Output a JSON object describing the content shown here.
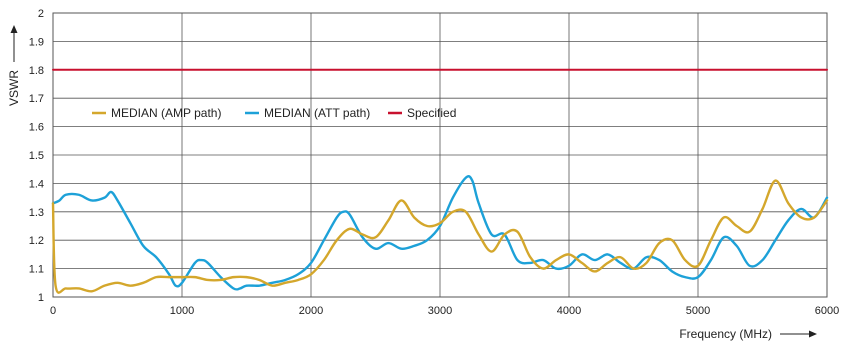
{
  "chart_data": {
    "type": "line",
    "xlabel": "Frequency (MHz)",
    "ylabel": "VSWR",
    "xlim": [
      0,
      6000
    ],
    "ylim": [
      1,
      2
    ],
    "x_ticks": [
      0,
      1000,
      2000,
      3000,
      4000,
      5000,
      6000
    ],
    "y_ticks": [
      1,
      1.1,
      1.2,
      1.3,
      1.4,
      1.5,
      1.6,
      1.7,
      1.8,
      1.9,
      2
    ],
    "grid": true,
    "legend_position": "upper-left",
    "series": [
      {
        "name": "MEDIAN (AMP path)",
        "color": "#d4a72c",
        "x": [
          0,
          20,
          100,
          200,
          300,
          400,
          500,
          600,
          700,
          800,
          900,
          1000,
          1100,
          1200,
          1300,
          1400,
          1500,
          1600,
          1700,
          1800,
          1900,
          2000,
          2100,
          2200,
          2300,
          2400,
          2500,
          2600,
          2700,
          2800,
          2900,
          3000,
          3100,
          3200,
          3300,
          3400,
          3500,
          3600,
          3700,
          3800,
          3900,
          4000,
          4100,
          4200,
          4300,
          4400,
          4500,
          4600,
          4700,
          4800,
          4900,
          5000,
          5100,
          5200,
          5300,
          5400,
          5500,
          5600,
          5700,
          5800,
          5900,
          6000
        ],
        "values": [
          1.33,
          1.04,
          1.03,
          1.03,
          1.02,
          1.04,
          1.05,
          1.04,
          1.05,
          1.07,
          1.07,
          1.07,
          1.07,
          1.06,
          1.06,
          1.07,
          1.07,
          1.06,
          1.04,
          1.05,
          1.06,
          1.08,
          1.13,
          1.2,
          1.24,
          1.22,
          1.21,
          1.27,
          1.34,
          1.28,
          1.25,
          1.26,
          1.3,
          1.3,
          1.22,
          1.16,
          1.22,
          1.23,
          1.14,
          1.1,
          1.13,
          1.15,
          1.12,
          1.09,
          1.12,
          1.14,
          1.1,
          1.12,
          1.19,
          1.2,
          1.13,
          1.11,
          1.2,
          1.28,
          1.25,
          1.23,
          1.31,
          1.41,
          1.33,
          1.28,
          1.28,
          1.34
        ]
      },
      {
        "name": "MEDIAN (ATT path)",
        "color": "#1da1d8",
        "x": [
          0,
          50,
          100,
          200,
          300,
          400,
          450,
          500,
          600,
          700,
          800,
          900,
          950,
          1000,
          1100,
          1150,
          1200,
          1300,
          1400,
          1450,
          1500,
          1600,
          1700,
          1800,
          1900,
          2000,
          2100,
          2200,
          2250,
          2300,
          2400,
          2500,
          2600,
          2700,
          2800,
          2900,
          3000,
          3100,
          3200,
          3250,
          3300,
          3400,
          3500,
          3600,
          3700,
          3800,
          3900,
          4000,
          4100,
          4200,
          4300,
          4400,
          4500,
          4600,
          4700,
          4800,
          4900,
          5000,
          5100,
          5200,
          5300,
          5400,
          5500,
          5600,
          5700,
          5800,
          5900,
          6000
        ],
        "values": [
          1.33,
          1.34,
          1.36,
          1.36,
          1.34,
          1.35,
          1.37,
          1.34,
          1.26,
          1.18,
          1.14,
          1.08,
          1.04,
          1.05,
          1.12,
          1.13,
          1.12,
          1.07,
          1.03,
          1.03,
          1.04,
          1.04,
          1.05,
          1.06,
          1.08,
          1.12,
          1.2,
          1.28,
          1.3,
          1.29,
          1.21,
          1.17,
          1.19,
          1.17,
          1.18,
          1.2,
          1.25,
          1.35,
          1.42,
          1.41,
          1.33,
          1.22,
          1.22,
          1.13,
          1.12,
          1.13,
          1.1,
          1.11,
          1.15,
          1.13,
          1.15,
          1.12,
          1.1,
          1.14,
          1.13,
          1.09,
          1.07,
          1.07,
          1.13,
          1.21,
          1.18,
          1.11,
          1.13,
          1.2,
          1.27,
          1.31,
          1.28,
          1.35
        ]
      },
      {
        "name": "Specified",
        "color": "#c8102e",
        "x": [
          0,
          6000
        ],
        "values": [
          1.8,
          1.8
        ]
      }
    ]
  }
}
